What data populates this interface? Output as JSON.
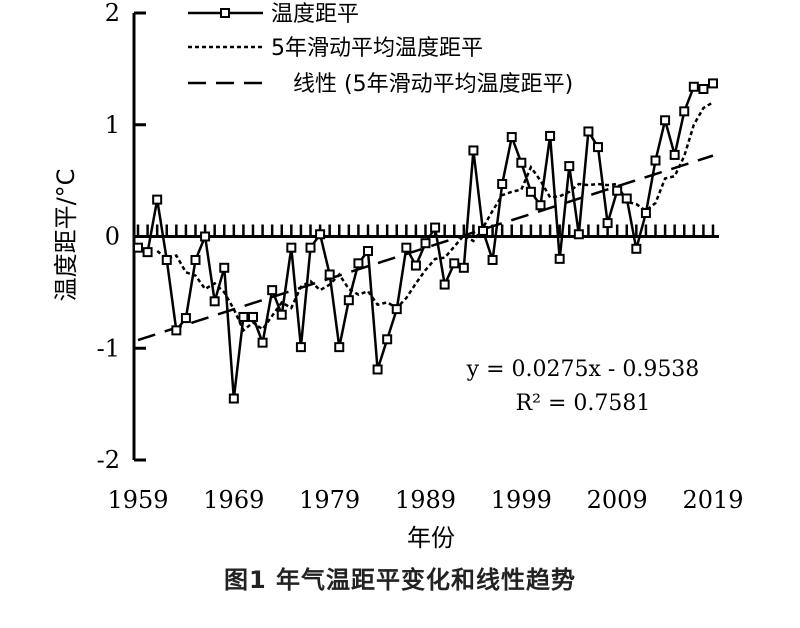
{
  "chart_data": {
    "type": "line",
    "title": "",
    "xlabel": "年份",
    "ylabel": "温度距平/°C",
    "xlim": [
      1959,
      2019
    ],
    "ylim": [
      -2,
      2
    ],
    "x_ticks": [
      "1959",
      "1969",
      "1979",
      "1989",
      "1999",
      "2009",
      "2019"
    ],
    "y_ticks": [
      "2",
      "1",
      "0",
      "-1",
      "-2"
    ],
    "legend_position": "top-center",
    "x": [
      1959,
      1960,
      1961,
      1962,
      1963,
      1964,
      1965,
      1966,
      1967,
      1968,
      1969,
      1970,
      1971,
      1972,
      1973,
      1974,
      1975,
      1976,
      1977,
      1978,
      1979,
      1980,
      1981,
      1982,
      1983,
      1984,
      1985,
      1986,
      1987,
      1988,
      1989,
      1990,
      1991,
      1992,
      1993,
      1994,
      1995,
      1996,
      1997,
      1998,
      1999,
      2000,
      2001,
      2002,
      2003,
      2004,
      2005,
      2006,
      2007,
      2008,
      2009,
      2010,
      2011,
      2012,
      2013,
      2014,
      2015,
      2016,
      2017,
      2018,
      2019
    ],
    "series": [
      {
        "name": "温度距平",
        "style": "solid-square-markers",
        "values": [
          -0.1,
          -0.14,
          0.33,
          -0.21,
          -0.84,
          -0.73,
          -0.21,
          0.0,
          -0.58,
          -0.28,
          -1.45,
          -0.72,
          -0.72,
          -0.95,
          -0.48,
          -0.7,
          -0.1,
          -0.99,
          -0.1,
          0.02,
          -0.34,
          -0.99,
          -0.57,
          -0.24,
          -0.13,
          -1.19,
          -0.92,
          -0.65,
          -0.1,
          -0.26,
          -0.06,
          0.08,
          -0.43,
          -0.24,
          -0.28,
          0.77,
          0.05,
          -0.21,
          0.47,
          0.89,
          0.66,
          0.4,
          0.28,
          0.9,
          -0.2,
          0.63,
          0.02,
          0.94,
          0.8,
          0.12,
          0.41,
          0.34,
          -0.11,
          0.21,
          0.68,
          1.04,
          0.73,
          1.12,
          1.34,
          1.32,
          1.37
        ]
      },
      {
        "name": "5年滑动平均温度距平",
        "style": "dotted",
        "values": [
          null,
          null,
          -0.13,
          -0.2,
          -0.17,
          -0.32,
          -0.35,
          -0.47,
          -0.42,
          -0.5,
          -0.65,
          -0.84,
          -0.77,
          -0.83,
          -0.71,
          -0.59,
          -0.64,
          -0.45,
          -0.4,
          -0.48,
          -0.43,
          -0.34,
          -0.47,
          -0.52,
          -0.49,
          -0.61,
          -0.59,
          -0.64,
          -0.55,
          -0.42,
          -0.3,
          -0.2,
          -0.19,
          -0.09,
          0.01,
          -0.04,
          0.08,
          0.23,
          0.37,
          0.4,
          0.42,
          0.62,
          0.5,
          0.35,
          0.36,
          0.4,
          0.47,
          0.46,
          0.47,
          0.46,
          0.47,
          0.31,
          0.29,
          0.23,
          0.3,
          0.52,
          0.54,
          0.72,
          1.0,
          1.15,
          1.2
        ]
      },
      {
        "name": "线性 (5年滑动平均温度距平)",
        "style": "dashed",
        "equation": "y = 0.0275x - 0.9538",
        "r2": "R² = 0.7581",
        "slope": 0.0275,
        "intercept": -0.9538
      }
    ]
  },
  "caption": "图1  年气温距平变化和线性趋势"
}
